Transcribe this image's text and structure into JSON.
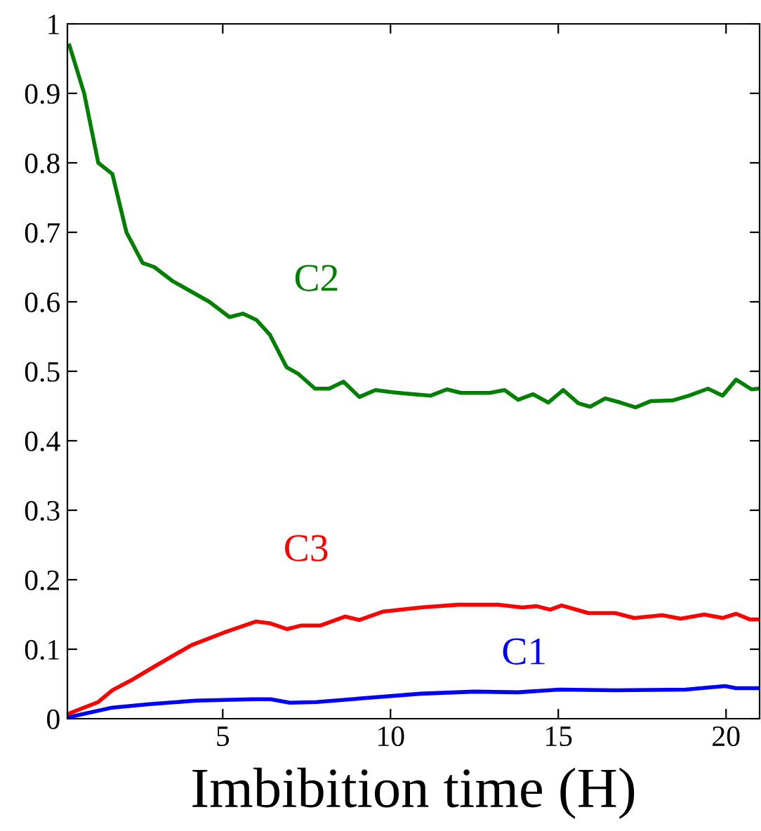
{
  "chart_data": {
    "type": "line",
    "xlabel": "Imbibition time (H)",
    "xlim": [
      0.37,
      21
    ],
    "xticks": [
      5,
      10,
      15,
      20
    ],
    "ylim": [
      0,
      1
    ],
    "yticks": [
      0,
      0.1,
      0.2,
      0.3,
      0.4,
      0.5,
      0.6,
      0.7,
      0.8,
      0.9,
      1
    ],
    "grid": false,
    "legend": false,
    "marker": "none",
    "line_style": "solid",
    "series": [
      {
        "name": "C1",
        "color": "#0000ff",
        "x": [
          0.39,
          1.71,
          2.82,
          4.2,
          5.9,
          6.43,
          7.0,
          7.8,
          9.07,
          10.9,
          12.5,
          13.8,
          15.04,
          16.7,
          18.8,
          19.97,
          20.3,
          20.96
        ],
        "values": [
          0.002,
          0.016,
          0.021,
          0.026,
          0.028,
          0.028,
          0.023,
          0.024,
          0.029,
          0.036,
          0.039,
          0.038,
          0.042,
          0.041,
          0.042,
          0.047,
          0.044,
          0.044
        ]
      },
      {
        "name": "C2",
        "color": "#008000",
        "x": [
          0.43,
          0.87,
          1.29,
          1.71,
          2.13,
          2.61,
          2.96,
          3.5,
          4.6,
          5.2,
          5.6,
          6.0,
          6.4,
          6.9,
          7.26,
          7.75,
          8.17,
          8.6,
          9.07,
          9.55,
          10.04,
          10.46,
          11.2,
          11.68,
          12.1,
          12.96,
          13.4,
          13.8,
          14.25,
          14.7,
          15.15,
          15.6,
          15.95,
          16.4,
          16.85,
          17.3,
          17.75,
          18.4,
          18.9,
          19.46,
          19.9,
          20.3,
          20.76,
          20.96
        ],
        "values": [
          0.969,
          0.9,
          0.8,
          0.784,
          0.7,
          0.656,
          0.65,
          0.63,
          0.6,
          0.578,
          0.583,
          0.574,
          0.553,
          0.506,
          0.496,
          0.475,
          0.475,
          0.485,
          0.463,
          0.473,
          0.47,
          0.468,
          0.465,
          0.474,
          0.469,
          0.469,
          0.473,
          0.459,
          0.467,
          0.455,
          0.473,
          0.454,
          0.449,
          0.461,
          0.455,
          0.448,
          0.457,
          0.458,
          0.465,
          0.475,
          0.465,
          0.488,
          0.474,
          0.475
        ]
      },
      {
        "name": "C3",
        "color": "#ff0000",
        "x": [
          0.39,
          1.29,
          1.71,
          2.26,
          2.96,
          4.07,
          5.04,
          6.0,
          6.43,
          6.92,
          7.33,
          7.9,
          8.65,
          9.07,
          9.76,
          10.9,
          12.0,
          12.8,
          13.24,
          13.93,
          14.35,
          14.76,
          15.1,
          15.9,
          16.7,
          17.26,
          18.1,
          18.65,
          19.35,
          19.9,
          20.3,
          20.7,
          20.96
        ],
        "values": [
          0.007,
          0.024,
          0.041,
          0.055,
          0.075,
          0.106,
          0.124,
          0.14,
          0.137,
          0.129,
          0.134,
          0.134,
          0.147,
          0.142,
          0.154,
          0.16,
          0.164,
          0.164,
          0.164,
          0.16,
          0.162,
          0.157,
          0.163,
          0.152,
          0.152,
          0.145,
          0.149,
          0.144,
          0.15,
          0.145,
          0.151,
          0.143,
          0.143
        ]
      }
    ]
  }
}
